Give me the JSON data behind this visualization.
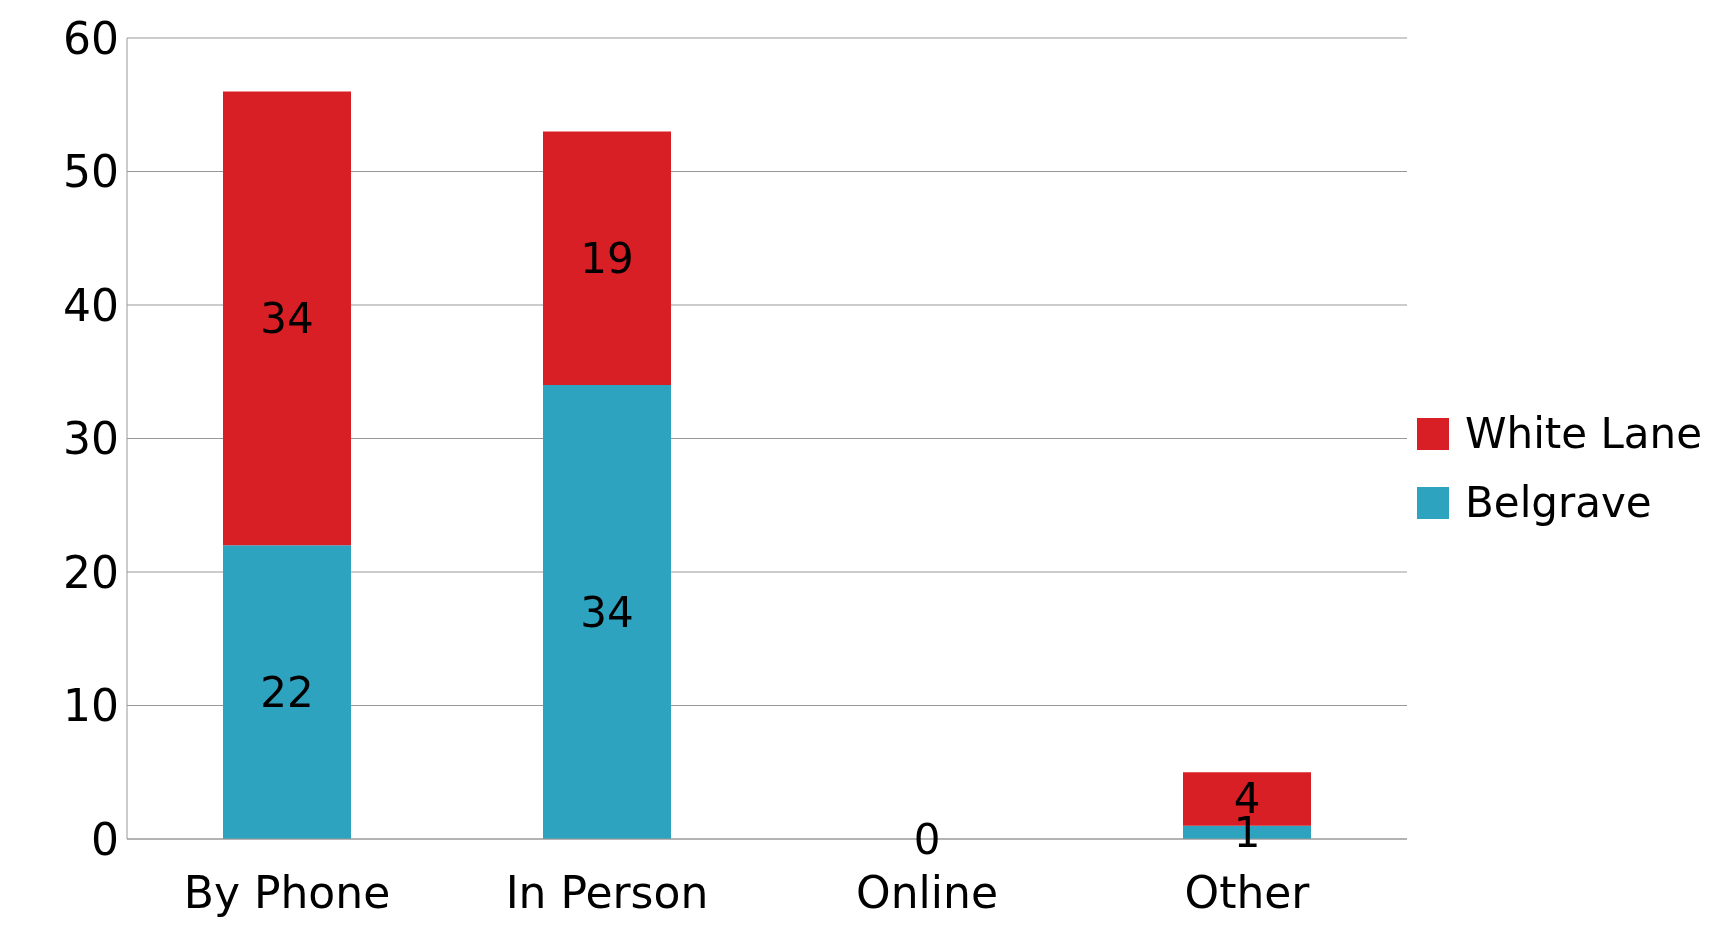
{
  "chart_data": {
    "type": "bar",
    "stacked": true,
    "categories": [
      "By Phone",
      "In Person",
      "Online",
      "Other"
    ],
    "series": [
      {
        "name": "Belgrave",
        "color": "#2ea3c0",
        "values": [
          22,
          34,
          0,
          1
        ],
        "value_labels": [
          "22",
          "34",
          "0",
          "1"
        ]
      },
      {
        "name": "White Lane",
        "color": "#d91f26",
        "values": [
          34,
          19,
          0,
          4
        ],
        "value_labels": [
          "34",
          "19",
          null,
          "4"
        ]
      }
    ],
    "ylim": [
      0,
      60
    ],
    "yticks": [
      0,
      10,
      20,
      30,
      40,
      50,
      60
    ],
    "grid": "y",
    "legend": "right"
  }
}
